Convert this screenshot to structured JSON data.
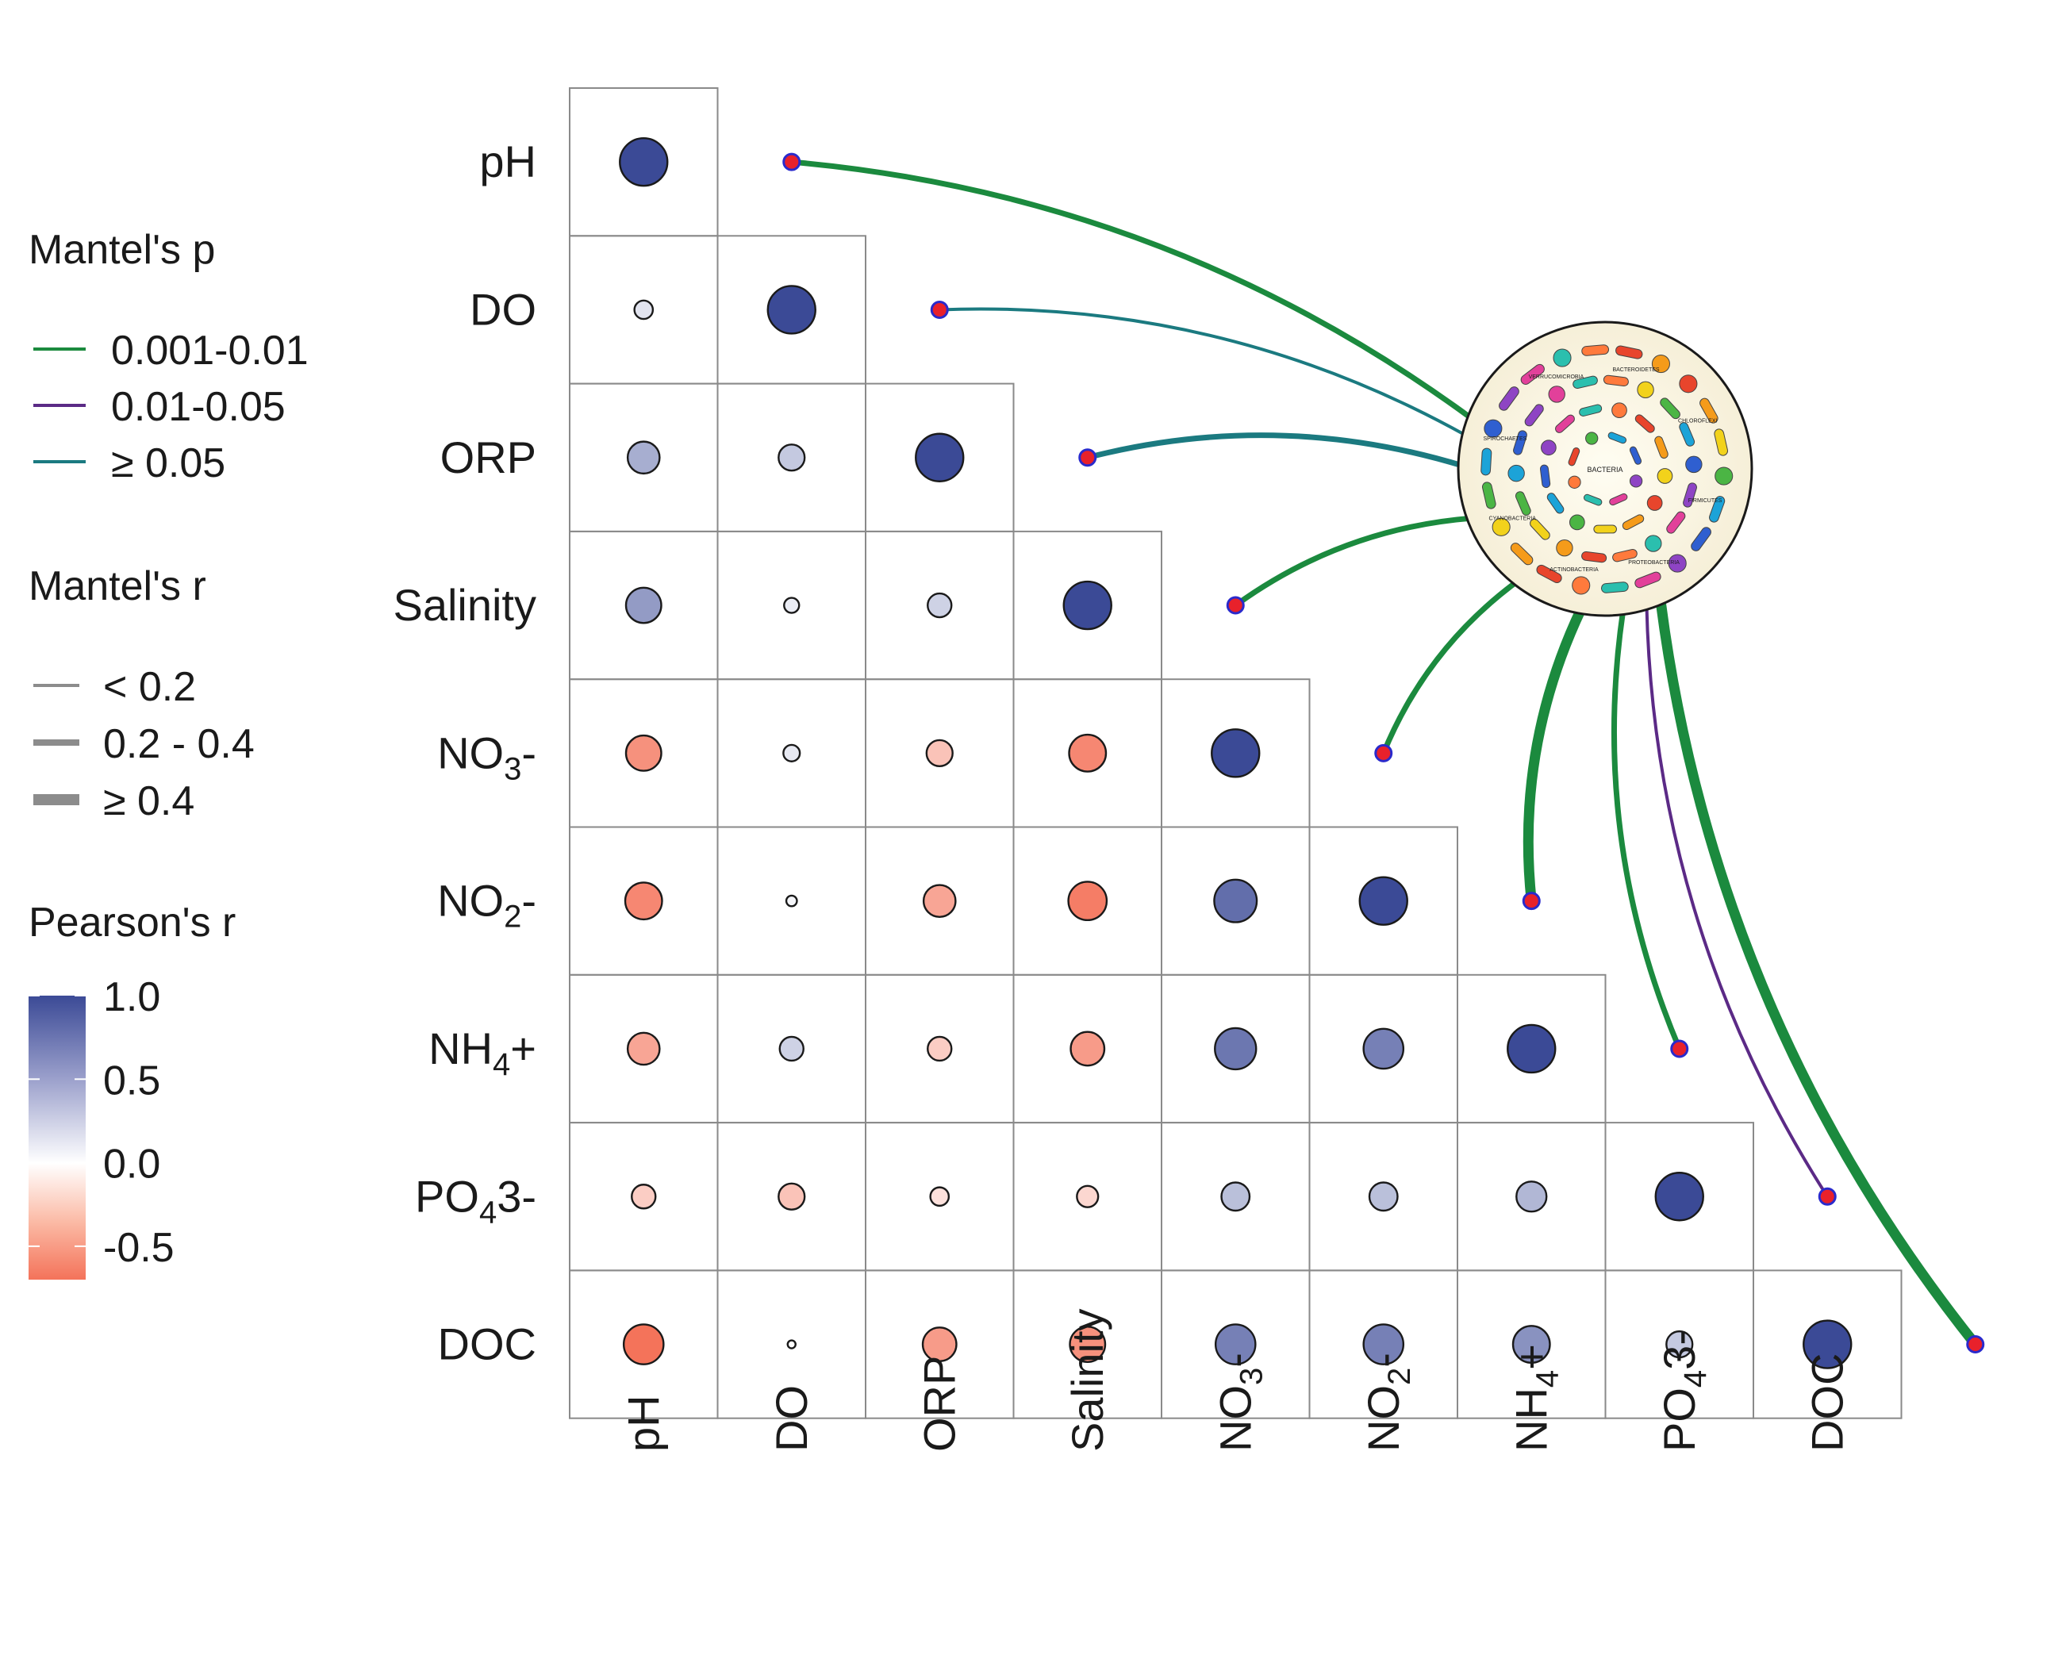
{
  "chart_data": {
    "type": "heatmap",
    "variables": [
      {
        "name": "pH",
        "base": "pH",
        "sub": "",
        "tail": ""
      },
      {
        "name": "DO",
        "base": "DO",
        "sub": "",
        "tail": ""
      },
      {
        "name": "ORP",
        "base": "ORP",
        "sub": "",
        "tail": ""
      },
      {
        "name": "Salinity",
        "base": "Salinity",
        "sub": "",
        "tail": ""
      },
      {
        "name": "NO3-",
        "base": "NO",
        "sub": "3",
        "tail": "-"
      },
      {
        "name": "NO2-",
        "base": "NO",
        "sub": "2",
        "tail": "-"
      },
      {
        "name": "NH4+",
        "base": "NH",
        "sub": "4",
        "tail": "+"
      },
      {
        "name": "PO43-",
        "base": "PO",
        "sub": "4",
        "tail": "3-"
      },
      {
        "name": "DOC",
        "base": "DOC",
        "sub": "",
        "tail": ""
      }
    ],
    "pearson_r_lower": [
      [
        1.0
      ],
      [
        0.15,
        1.0
      ],
      [
        0.45,
        0.3,
        1.0
      ],
      [
        0.55,
        0.1,
        0.25,
        1.0
      ],
      [
        -0.55,
        0.12,
        -0.3,
        -0.6,
        1.0
      ],
      [
        -0.6,
        0.05,
        -0.45,
        -0.65,
        0.8,
        1.0
      ],
      [
        -0.45,
        0.25,
        -0.25,
        -0.5,
        0.75,
        0.7,
        1.0
      ],
      [
        -0.25,
        -0.3,
        -0.15,
        -0.2,
        0.35,
        0.35,
        0.4,
        1.0
      ],
      [
        -0.7,
        0.0,
        -0.5,
        -0.55,
        0.7,
        0.7,
        0.6,
        0.3,
        1.0
      ]
    ],
    "mantel": {
      "source": "microbial community",
      "links": [
        {
          "var": "pH",
          "p_class": "0.001-0.01",
          "r_class": "0.2 - 0.4"
        },
        {
          "var": "DO",
          "p_class": "≥ 0.05",
          "r_class": "< 0.2"
        },
        {
          "var": "ORP",
          "p_class": "≥ 0.05",
          "r_class": "0.2 - 0.4"
        },
        {
          "var": "Salinity",
          "p_class": "0.001-0.01",
          "r_class": "0.2 - 0.4"
        },
        {
          "var": "NO3-",
          "p_class": "0.001-0.01",
          "r_class": "0.2 - 0.4"
        },
        {
          "var": "NO2-",
          "p_class": "0.001-0.01",
          "r_class": "≥ 0.4"
        },
        {
          "var": "NH4+",
          "p_class": "0.001-0.01",
          "r_class": "0.2 - 0.4"
        },
        {
          "var": "PO43-",
          "p_class": "0.01-0.05",
          "r_class": "< 0.2"
        },
        {
          "var": "DOC",
          "p_class": "0.001-0.01",
          "r_class": "≥ 0.4"
        }
      ]
    },
    "legend": {
      "mantel_p_title": "Mantel's p",
      "mantel_p_items": [
        {
          "label": "0.001-0.01",
          "color": "#1b8a3e"
        },
        {
          "label": "0.01-0.05",
          "color": "#5b2a86"
        },
        {
          "label": "≥ 0.05",
          "color": "#1b7a80"
        }
      ],
      "mantel_r_title": "Mantel's r",
      "mantel_r_items": [
        {
          "label": "< 0.2"
        },
        {
          "label": "0.2 - 0.4"
        },
        {
          "label": "≥ 0.4"
        }
      ],
      "pearson_title": "Pearson's r",
      "pearson_ticks": [
        {
          "value": 1.0,
          "label": "1.0"
        },
        {
          "value": 0.5,
          "label": "0.5"
        },
        {
          "value": 0.0,
          "label": "0.0"
        },
        {
          "value": -0.5,
          "label": "-0.5"
        }
      ],
      "pearson_range": [
        -0.7,
        1.0
      ]
    },
    "colors": {
      "positive": "#3b4a96",
      "neutral": "#ffffff",
      "negative": "#f4735a",
      "link_node": "#e8212b",
      "link_node_stroke": "#2a2acc",
      "grid": "#8a8a8a",
      "width_legend": "#8c8c8c"
    },
    "community_image": {
      "center_label": "BACTERIA",
      "ring_labels": [
        "FIRMICUTES",
        "PROTEOBACTERIA",
        "ACTINOBACTERIA",
        "CYANOBACTERIA",
        "SPIROCHAETES",
        "VERRUCOMICROBIA",
        "BACTEROIDETES",
        "CHLOROFLEXI"
      ]
    }
  }
}
